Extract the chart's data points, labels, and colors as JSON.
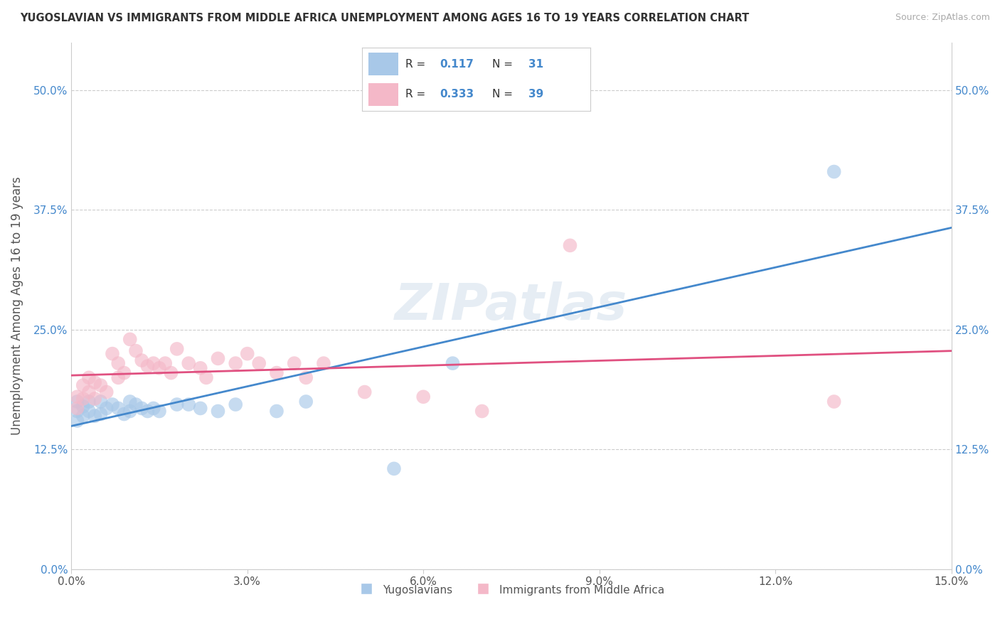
{
  "title": "YUGOSLAVIAN VS IMMIGRANTS FROM MIDDLE AFRICA UNEMPLOYMENT AMONG AGES 16 TO 19 YEARS CORRELATION CHART",
  "source": "Source: ZipAtlas.com",
  "ylabel": "Unemployment Among Ages 16 to 19 years",
  "r_blue": 0.117,
  "n_blue": 31,
  "r_pink": 0.333,
  "n_pink": 39,
  "xlim": [
    0.0,
    0.15
  ],
  "ylim": [
    0.0,
    0.55
  ],
  "yticks": [
    0.0,
    0.125,
    0.25,
    0.375,
    0.5
  ],
  "ytick_labels": [
    "0.0%",
    "12.5%",
    "25.0%",
    "37.5%",
    "50.0%"
  ],
  "xticks": [
    0.0,
    0.03,
    0.06,
    0.09,
    0.12,
    0.15
  ],
  "xtick_labels": [
    "0.0%",
    "3.0%",
    "6.0%",
    "9.0%",
    "12.0%",
    "15.0%"
  ],
  "blue_color": "#a8c8e8",
  "pink_color": "#f4b8c8",
  "blue_line_color": "#4488cc",
  "pink_line_color": "#e05080",
  "legend_label_blue": "Yugoslavians",
  "legend_label_pink": "Immigrants from Middle Africa",
  "watermark": "ZIPatlas",
  "blue_scatter_x": [
    0.001,
    0.001,
    0.001,
    0.002,
    0.002,
    0.003,
    0.003,
    0.004,
    0.005,
    0.005,
    0.006,
    0.007,
    0.008,
    0.009,
    0.01,
    0.01,
    0.011,
    0.012,
    0.013,
    0.014,
    0.015,
    0.018,
    0.02,
    0.022,
    0.025,
    0.028,
    0.035,
    0.04,
    0.055,
    0.065,
    0.13
  ],
  "blue_scatter_y": [
    0.175,
    0.165,
    0.155,
    0.17,
    0.16,
    0.175,
    0.165,
    0.16,
    0.175,
    0.162,
    0.168,
    0.172,
    0.168,
    0.162,
    0.175,
    0.165,
    0.172,
    0.168,
    0.165,
    0.168,
    0.165,
    0.172,
    0.172,
    0.168,
    0.165,
    0.172,
    0.165,
    0.175,
    0.105,
    0.215,
    0.415
  ],
  "pink_scatter_x": [
    0.001,
    0.001,
    0.002,
    0.002,
    0.003,
    0.003,
    0.004,
    0.004,
    0.005,
    0.006,
    0.007,
    0.008,
    0.008,
    0.009,
    0.01,
    0.011,
    0.012,
    0.013,
    0.014,
    0.015,
    0.016,
    0.017,
    0.018,
    0.02,
    0.022,
    0.023,
    0.025,
    0.028,
    0.03,
    0.032,
    0.035,
    0.038,
    0.04,
    0.043,
    0.05,
    0.06,
    0.07,
    0.085,
    0.13
  ],
  "pink_scatter_y": [
    0.18,
    0.168,
    0.192,
    0.178,
    0.2,
    0.185,
    0.195,
    0.178,
    0.192,
    0.185,
    0.225,
    0.215,
    0.2,
    0.205,
    0.24,
    0.228,
    0.218,
    0.212,
    0.215,
    0.21,
    0.215,
    0.205,
    0.23,
    0.215,
    0.21,
    0.2,
    0.22,
    0.215,
    0.225,
    0.215,
    0.205,
    0.215,
    0.2,
    0.215,
    0.185,
    0.18,
    0.165,
    0.338,
    0.175
  ]
}
